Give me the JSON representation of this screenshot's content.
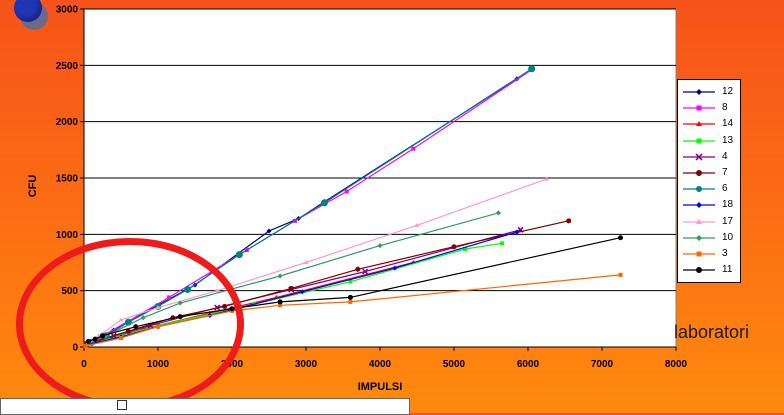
{
  "chart_data": {
    "type": "line",
    "xlabel": "IMPULSI",
    "ylabel": "CFU",
    "xlim": [
      0,
      8000
    ],
    "ylim": [
      0,
      3000
    ],
    "x_ticks": [
      "0",
      "1000",
      "2000",
      "3000",
      "4000",
      "5000",
      "6000",
      "7000",
      "8000"
    ],
    "y_ticks": [
      "0",
      "500",
      "1000",
      "1500",
      "2000",
      "2500",
      "3000"
    ],
    "grid": "horizontal",
    "legend_position": "right",
    "series": [
      {
        "name": "12",
        "color": "#000080",
        "marker": "diamond",
        "points": [
          [
            20,
            15
          ],
          [
            120,
            50
          ],
          [
            400,
            150
          ],
          [
            1000,
            370
          ],
          [
            1500,
            550
          ],
          [
            2500,
            1030
          ],
          [
            2900,
            1140
          ],
          [
            3250,
            1290
          ],
          [
            5850,
            2380
          ]
        ]
      },
      {
        "name": "8",
        "color": "#ff00ff",
        "marker": "square",
        "points": [
          [
            30,
            20
          ],
          [
            200,
            80
          ],
          [
            600,
            230
          ],
          [
            1150,
            440
          ],
          [
            2200,
            860
          ],
          [
            2850,
            1120
          ],
          [
            3550,
            1380
          ],
          [
            4450,
            1760
          ],
          [
            6050,
            2460
          ]
        ]
      },
      {
        "name": "14",
        "color": "#ff0000",
        "marker": "triangle",
        "points": [
          [
            20,
            10
          ],
          [
            300,
            70
          ],
          [
            800,
            160
          ],
          [
            1700,
            300
          ],
          [
            2600,
            440
          ],
          [
            4450,
            750
          ]
        ]
      },
      {
        "name": "13",
        "color": "#00ff00",
        "marker": "square",
        "points": [
          [
            30,
            15
          ],
          [
            500,
            100
          ],
          [
            1000,
            190
          ],
          [
            2300,
            380
          ],
          [
            3600,
            580
          ],
          [
            5150,
            870
          ],
          [
            5650,
            920
          ]
        ]
      },
      {
        "name": "4",
        "color": "#800080",
        "marker": "x",
        "points": [
          [
            40,
            20
          ],
          [
            400,
            100
          ],
          [
            900,
            190
          ],
          [
            1800,
            350
          ],
          [
            2800,
            510
          ],
          [
            3800,
            670
          ],
          [
            5900,
            1040
          ]
        ]
      },
      {
        "name": "7",
        "color": "#800000",
        "marker": "circle",
        "points": [
          [
            30,
            30
          ],
          [
            600,
            140
          ],
          [
            1200,
            260
          ],
          [
            1900,
            360
          ],
          [
            2800,
            520
          ],
          [
            3700,
            690
          ],
          [
            5000,
            890
          ],
          [
            6550,
            1120
          ]
        ]
      },
      {
        "name": "6",
        "color": "#008080",
        "marker": "circle",
        "points": [
          [
            100,
            40
          ],
          [
            300,
            100
          ],
          [
            600,
            220
          ],
          [
            1000,
            360
          ],
          [
            1400,
            510
          ],
          [
            2100,
            820
          ],
          [
            3250,
            1280
          ],
          [
            6050,
            2470
          ]
        ]
      },
      {
        "name": "18",
        "color": "#0000ff",
        "marker": "diamond",
        "points": [
          [
            50,
            20
          ],
          [
            500,
            90
          ],
          [
            1000,
            180
          ],
          [
            1700,
            280
          ],
          [
            2950,
            490
          ],
          [
            4200,
            700
          ],
          [
            5850,
            1020
          ]
        ]
      },
      {
        "name": "17",
        "color": "#ff99cc",
        "marker": "triangle",
        "points": [
          [
            40,
            20
          ],
          [
            200,
            100
          ],
          [
            500,
            240
          ],
          [
            1000,
            350
          ],
          [
            1800,
            500
          ],
          [
            3000,
            750
          ],
          [
            4500,
            1080
          ],
          [
            6250,
            1490
          ]
        ]
      },
      {
        "name": "10",
        "color": "#339966",
        "marker": "diamond",
        "points": [
          [
            40,
            20
          ],
          [
            300,
            100
          ],
          [
            800,
            260
          ],
          [
            1300,
            390
          ],
          [
            2650,
            630
          ],
          [
            4000,
            900
          ],
          [
            5600,
            1190
          ]
        ]
      },
      {
        "name": "3",
        "color": "#ff6600",
        "marker": "square",
        "points": [
          [
            20,
            10
          ],
          [
            500,
            80
          ],
          [
            1000,
            180
          ],
          [
            2000,
            320
          ],
          [
            2650,
            370
          ],
          [
            3600,
            400
          ],
          [
            7250,
            640
          ]
        ]
      },
      {
        "name": "11",
        "color": "#000000",
        "marker": "circle",
        "points": [
          [
            60,
            50
          ],
          [
            150,
            70
          ],
          [
            250,
            100
          ],
          [
            700,
            180
          ],
          [
            1300,
            270
          ],
          [
            2000,
            340
          ],
          [
            2650,
            400
          ],
          [
            3600,
            440
          ],
          [
            7250,
            970
          ]
        ]
      }
    ]
  },
  "annotations": {
    "side_text": "laboratori"
  },
  "colors": {
    "plot_background": "#ffffff",
    "gridline": "#000000",
    "highlight_oval": "#ef1a1a",
    "background_top": "#f6531a",
    "background_bottom": "#ff8a0e"
  }
}
